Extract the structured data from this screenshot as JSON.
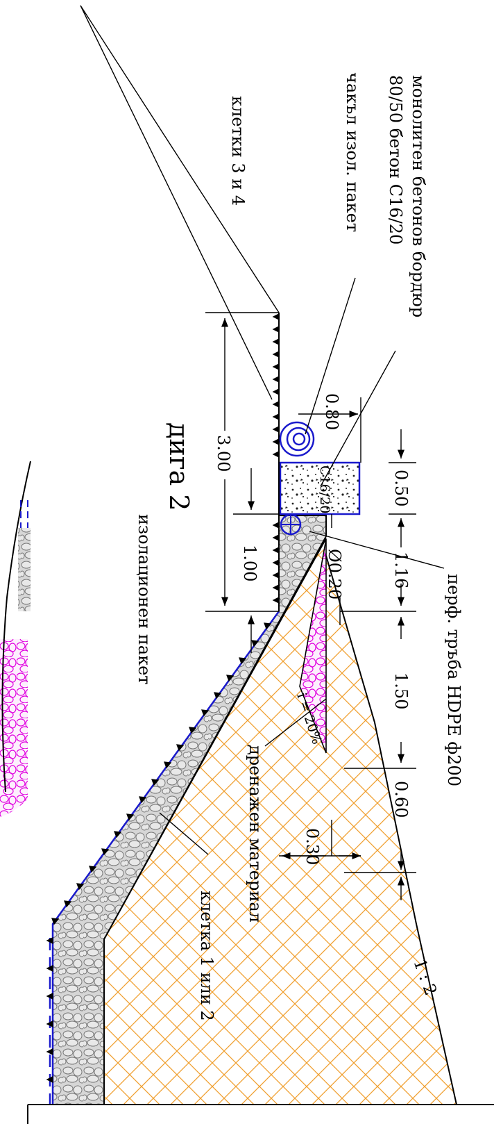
{
  "labels": {
    "monolith_curb": "монолитен бетонов бордюр",
    "curb_spec": "80/50  бетон С16/20",
    "gravel_pack": "чакъл изол. пакет",
    "cells_3_4": "клетки  3 и 4",
    "dike": "дига 2",
    "insulation_pack": "изолационен пакет",
    "perf_pipe": "перф. тръба HDPE ф200",
    "drainage_material": "дренажен материал",
    "cell_1_2": "клетка 1 или 2",
    "slope_ratio": "1 : 2",
    "gradient": "i = 20%",
    "concrete_mark": "С16/20",
    "pipe_diameter": "Ø0.20"
  },
  "dimensions": {
    "d_080": "0.80",
    "d_300": "3.00",
    "d_100": "1.00",
    "d_050": "0.50",
    "d_116": "1.16",
    "d_150": "1.50",
    "d_060": "0.60",
    "d_030": "0.30"
  },
  "colors": {
    "line": "#000000",
    "gravel": "#8c8c8c",
    "drainage": "#e000e0",
    "fill_hatch": "#f0a030",
    "membrane": "#1a1acc",
    "pipe": "#1a1acc"
  }
}
